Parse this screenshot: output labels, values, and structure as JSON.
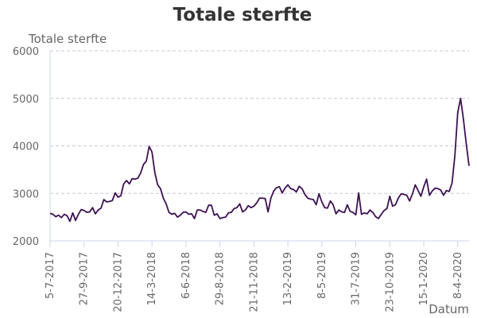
{
  "chart_data": {
    "type": "line",
    "title": "Totale sterfte",
    "ylabel": "Totale sterfte",
    "xlabel": "Datum",
    "ylim": [
      2000,
      6000
    ],
    "yticks": [
      2000,
      3000,
      4000,
      5000,
      6000
    ],
    "x_tick_labels": [
      "5-7-2017",
      "27-9-2017",
      "20-12-2017",
      "14-3-2018",
      "6-6-2018",
      "29-8-2018",
      "21-11-2018",
      "13-2-2019",
      "8-5-2019",
      "31-7-2019",
      "23-10-2019",
      "15-1-2020",
      "8-4-2020"
    ],
    "x_tick_weeks": [
      0,
      12,
      24,
      36,
      48,
      60,
      72,
      84,
      96,
      108,
      120,
      132,
      144
    ],
    "grid": true,
    "colors": {
      "line": "#3d1152",
      "grid": "#c8c8d8",
      "axis": "#ccd6eb"
    },
    "series": [
      {
        "values": [
          2580,
          2560,
          2510,
          2540,
          2490,
          2560,
          2530,
          2410,
          2590,
          2430,
          2560,
          2660,
          2640,
          2600,
          2610,
          2700,
          2570,
          2650,
          2690,
          2870,
          2820,
          2830,
          2850,
          3010,
          2920,
          2950,
          3200,
          3270,
          3200,
          3310,
          3300,
          3320,
          3430,
          3610,
          3680,
          3990,
          3870,
          3440,
          3180,
          3100,
          2900,
          2780,
          2600,
          2560,
          2580,
          2500,
          2540,
          2600,
          2610,
          2560,
          2570,
          2470,
          2650,
          2650,
          2620,
          2600,
          2750,
          2750,
          2540,
          2570,
          2470,
          2490,
          2500,
          2590,
          2600,
          2680,
          2700,
          2780,
          2610,
          2650,
          2740,
          2700,
          2730,
          2800,
          2900,
          2900,
          2890,
          2610,
          2900,
          3050,
          3120,
          3140,
          3010,
          3110,
          3180,
          3100,
          3080,
          3030,
          3150,
          3100,
          2980,
          2900,
          2880,
          2870,
          2760,
          2990,
          2820,
          2700,
          2690,
          2840,
          2760,
          2570,
          2650,
          2610,
          2600,
          2760,
          2620,
          2600,
          2550,
          3010,
          2560,
          2590,
          2570,
          2650,
          2600,
          2510,
          2470,
          2560,
          2640,
          2680,
          2940,
          2730,
          2760,
          2900,
          2990,
          2980,
          2960,
          2840,
          2990,
          3180,
          3060,
          2940,
          3140,
          3300,
          2960,
          3050,
          3110,
          3100,
          3070,
          2960,
          3060,
          3040,
          3220,
          3800,
          4700,
          5000,
          4570,
          4050,
          3580
        ]
      }
    ]
  }
}
